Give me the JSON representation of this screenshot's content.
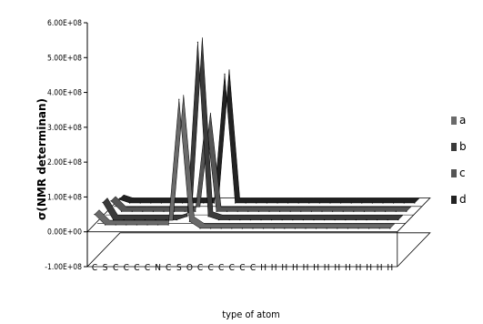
{
  "chart_data": {
    "type": "line",
    "style": "3d-ribbon",
    "title": "",
    "xlabel": "type of atom",
    "ylabel": "σ(NMR determinan)",
    "categories": [
      "C",
      "S",
      "C",
      "C",
      "C",
      "C",
      "N",
      "C",
      "S",
      "O",
      "C",
      "C",
      "C",
      "C",
      "C",
      "C",
      "H",
      "H",
      "H",
      "H",
      "H",
      "H",
      "H",
      "H",
      "H",
      "H",
      "H",
      "H",
      "H"
    ],
    "y_ticks": [
      "-1.00E+08",
      "0.00E+00",
      "1.00E+08",
      "2.00E+08",
      "3.00E+08",
      "4.00E+08",
      "5.00E+08",
      "6.00E+08"
    ],
    "ylim": [
      -100000000,
      600000000
    ],
    "legend_position": "right",
    "series": [
      {
        "name": "a",
        "color": "#6a6a6a",
        "values": [
          50000000,
          20000000,
          20000000,
          20000000,
          20000000,
          20000000,
          20000000,
          20000000,
          380000000,
          30000000,
          10000000,
          10000000,
          10000000,
          10000000,
          10000000,
          10000000,
          10000000,
          10000000,
          10000000,
          10000000,
          10000000,
          10000000,
          10000000,
          10000000,
          10000000,
          10000000,
          10000000,
          10000000,
          10000000
        ]
      },
      {
        "name": "b",
        "color": "#3a3a3a",
        "values": [
          60000000,
          10000000,
          10000000,
          10000000,
          10000000,
          10000000,
          10000000,
          10000000,
          20000000,
          520000000,
          20000000,
          10000000,
          10000000,
          10000000,
          10000000,
          10000000,
          10000000,
          10000000,
          10000000,
          10000000,
          10000000,
          10000000,
          10000000,
          10000000,
          10000000,
          10000000,
          10000000,
          10000000,
          10000000
        ]
      },
      {
        "name": "c",
        "color": "#555555",
        "values": [
          40000000,
          10000000,
          10000000,
          10000000,
          10000000,
          10000000,
          10000000,
          10000000,
          10000000,
          280000000,
          10000000,
          10000000,
          10000000,
          10000000,
          10000000,
          10000000,
          10000000,
          10000000,
          10000000,
          10000000,
          10000000,
          10000000,
          10000000,
          10000000,
          10000000,
          10000000,
          10000000,
          10000000,
          10000000
        ]
      },
      {
        "name": "d",
        "color": "#222222",
        "values": [
          20000000,
          10000000,
          10000000,
          10000000,
          10000000,
          10000000,
          10000000,
          10000000,
          10000000,
          10000000,
          380000000,
          10000000,
          10000000,
          10000000,
          10000000,
          10000000,
          10000000,
          10000000,
          10000000,
          10000000,
          10000000,
          10000000,
          10000000,
          10000000,
          10000000,
          10000000,
          10000000,
          10000000,
          10000000
        ]
      }
    ]
  }
}
